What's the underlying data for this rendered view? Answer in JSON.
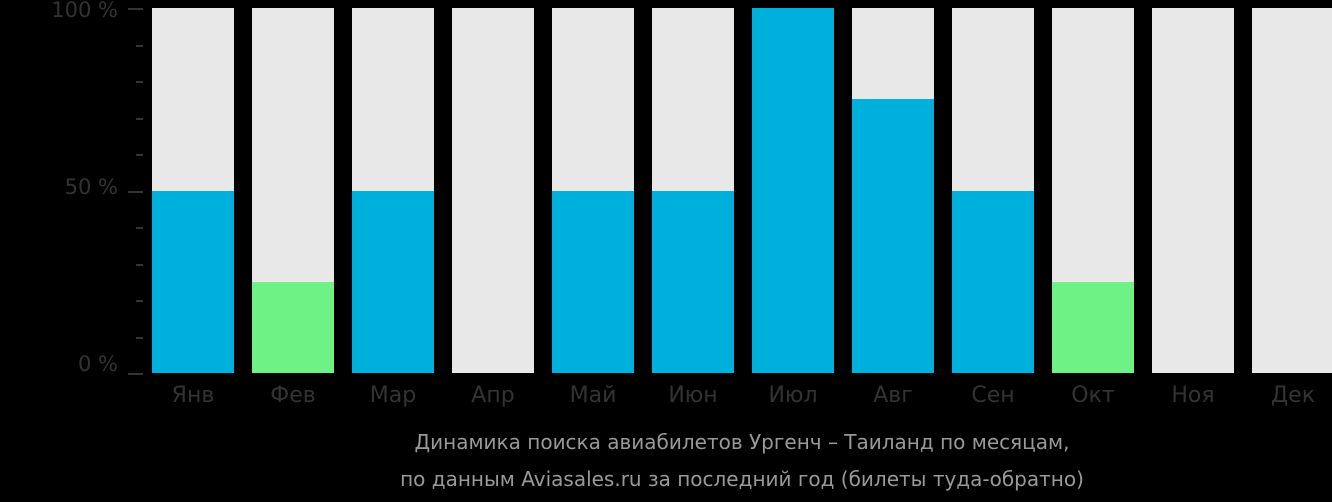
{
  "chart_data": {
    "type": "bar",
    "title": "Динамика поиска авиабилетов Ургенч – Таиланд по месяцам, по данным Aviasales.ru за последний год (билеты туда-обратно)",
    "categories": [
      "Янв",
      "Фев",
      "Мар",
      "Апр",
      "Май",
      "Июн",
      "Июл",
      "Авг",
      "Сен",
      "Окт",
      "Ноя",
      "Дек"
    ],
    "values": [
      50,
      25,
      50,
      0,
      50,
      50,
      100,
      75,
      50,
      25,
      0,
      0
    ],
    "colors": [
      "#00b0dc",
      "#6ef286",
      "#00b0dc",
      "#00b0dc",
      "#00b0dc",
      "#00b0dc",
      "#00b0dc",
      "#00b0dc",
      "#00b0dc",
      "#6ef286",
      "#00b0dc",
      "#00b0dc"
    ],
    "background_bar_color": "#e8e8e8",
    "xlabel": "",
    "ylabel": "",
    "ylim": [
      0,
      100
    ],
    "yticks": [
      "0 %",
      "50 %",
      "100 %"
    ],
    "grid": false
  },
  "caption": {
    "line1": "Динамика поиска авиабилетов Ургенч – Таиланд по месяцам,",
    "line2": "по данным Aviasales.ru за последний год (билеты туда-обратно)"
  }
}
